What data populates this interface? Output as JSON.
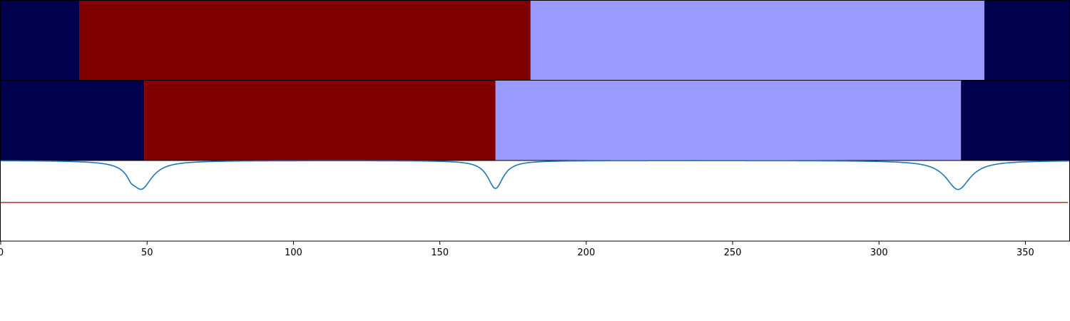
{
  "chart_data": {
    "type": "segmentation-track-with-line",
    "xlim": [
      0,
      365
    ],
    "colors": {
      "class_0": "#00004c",
      "class_1": "#7f0000",
      "class_2": "#9999ff",
      "signal_line": "#1f77b4",
      "threshold_line": "#d62728"
    },
    "tracks": [
      {
        "segments": [
          {
            "start": 0,
            "end": 27,
            "class": "class_0"
          },
          {
            "start": 27,
            "end": 181,
            "class": "class_1"
          },
          {
            "start": 181,
            "end": 336,
            "class": "class_2"
          },
          {
            "start": 336,
            "end": 365,
            "class": "class_0"
          }
        ]
      },
      {
        "segments": [
          {
            "start": 0,
            "end": 49,
            "class": "class_0"
          },
          {
            "start": 49,
            "end": 169,
            "class": "class_1"
          },
          {
            "start": 169,
            "end": 328,
            "class": "class_2"
          },
          {
            "start": 328,
            "end": 365,
            "class": "class_0"
          }
        ]
      }
    ],
    "signal": {
      "baseline": 1.0,
      "ylim": [
        -0.5,
        1.0
      ],
      "dips": [
        {
          "x": 48,
          "depth": 0.52,
          "width": 4.5
        },
        {
          "x": 169,
          "depth": 0.52,
          "width": 3.2
        },
        {
          "x": 327,
          "depth": 0.54,
          "width": 5.0
        }
      ],
      "secondary_bumps": [
        {
          "x": 44.5,
          "depth": 0.1,
          "width": 1.5
        }
      ]
    },
    "threshold": 0.22,
    "xticks": [
      0,
      50,
      100,
      150,
      200,
      250,
      300,
      350
    ]
  }
}
